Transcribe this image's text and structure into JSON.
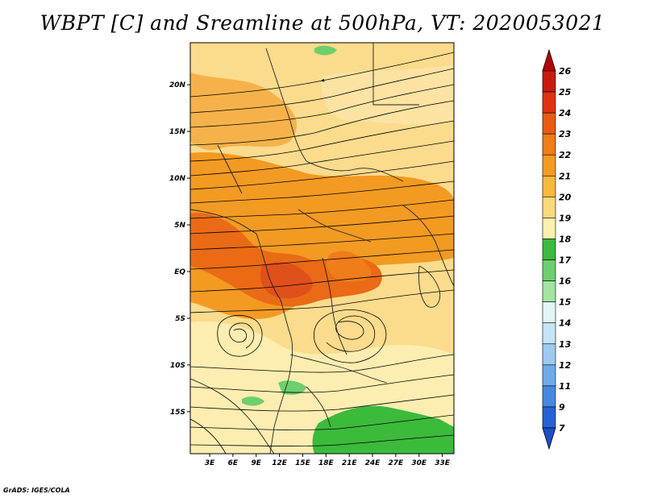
{
  "title": "WBPT [C] and Sreamline at 500hPa, VT: 2020053021",
  "credit": "GrADS: IGES/COLA",
  "lat_labels": [
    "20N",
    "15N",
    "10N",
    "5N",
    "EQ",
    "5S",
    "10S",
    "15S"
  ],
  "lat_values": [
    20,
    15,
    10,
    5,
    0,
    -5,
    -10,
    -15
  ],
  "lon_labels": [
    "3E",
    "6E",
    "9E",
    "12E",
    "15E",
    "18E",
    "21E",
    "24E",
    "27E",
    "30E",
    "33E"
  ],
  "lon_values": [
    3,
    6,
    9,
    12,
    15,
    18,
    21,
    24,
    27,
    30,
    33
  ],
  "colorbar": {
    "labels": [
      "26",
      "25",
      "24",
      "23",
      "22",
      "21",
      "20",
      "19",
      "18",
      "17",
      "16",
      "15",
      "14",
      "13",
      "12",
      "11",
      "9",
      "7"
    ],
    "colors": [
      "#b3000d",
      "#c81a0f",
      "#e0330f",
      "#ea5a13",
      "#f07c1a",
      "#f39a22",
      "#f7b83c",
      "#fbd97a",
      "#fdf0ae",
      "#3cba3c",
      "#6dcf6d",
      "#a2e4a2",
      "#e4f5f8",
      "#c5e4f8",
      "#9ccbf2",
      "#6fabeb",
      "#4589e0",
      "#2663d4",
      "#1a4fc9"
    ]
  }
}
